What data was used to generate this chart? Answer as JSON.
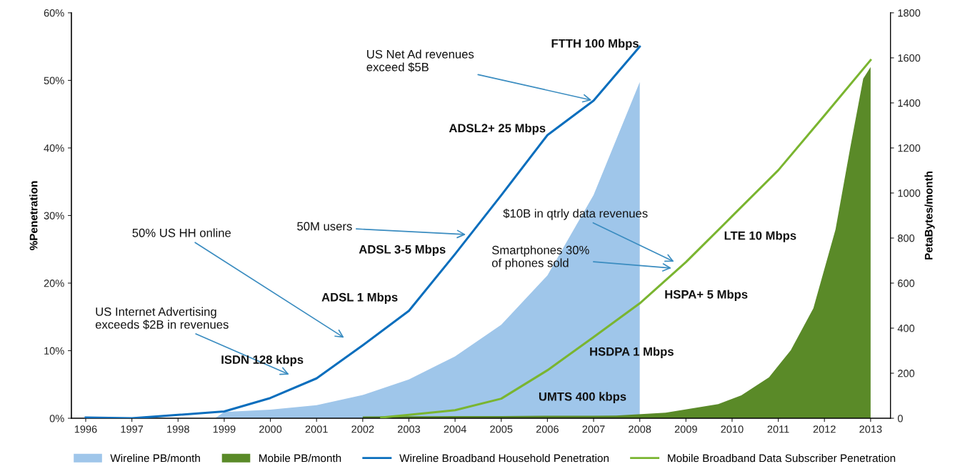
{
  "chart_data": {
    "type": "line",
    "ylabel": "%Penetration",
    "y2label": "PetaBytes/month",
    "xlim": [
      1995.69,
      2013.43
    ],
    "xticks": [
      1996,
      1997,
      1998,
      1999,
      2000,
      2001,
      2002,
      2003,
      2004,
      2005,
      2006,
      2007,
      2008,
      2009,
      2010,
      2011,
      2012,
      2013
    ],
    "ylim": [
      0,
      60
    ],
    "yticks": [
      {
        "value": 0,
        "label": "0%"
      },
      {
        "value": 10,
        "label": "10%"
      },
      {
        "value": 20,
        "label": "20%"
      },
      {
        "value": 30,
        "label": "30%"
      },
      {
        "value": 40,
        "label": "40%"
      },
      {
        "value": 50,
        "label": "50%"
      },
      {
        "value": 60,
        "label": "60%"
      }
    ],
    "y2lim": [
      0,
      1800
    ],
    "y2ticks": [
      0,
      200,
      400,
      600,
      800,
      1000,
      1200,
      1400,
      1600,
      1800
    ],
    "grid": false,
    "legend": "bottom",
    "series": [
      {
        "name": "Wireline PB/month",
        "type": "area",
        "axis": "y2",
        "color": "#9fc6ea",
        "x": [
          1998.8,
          1999,
          2000,
          2001,
          2002,
          2003,
          2004,
          2005,
          2006,
          2007,
          2008
        ],
        "values": [
          0,
          28,
          38,
          58,
          103,
          172,
          275,
          415,
          634,
          991,
          1493
        ]
      },
      {
        "name": "Mobile PB/month",
        "type": "area",
        "axis": "y2",
        "color": "#5a8a28",
        "x": [
          2002,
          2003,
          2004,
          2005,
          2006,
          2007,
          2007.49,
          2008.56,
          2009.7,
          2010.2,
          2010.8,
          2011.27,
          2011.76,
          2012.24,
          2012.56,
          2012.84,
          2013
        ],
        "values": [
          8,
          9,
          10,
          10,
          11,
          11,
          12,
          25,
          63,
          102,
          182,
          302,
          488,
          838,
          1202,
          1508,
          1559
        ]
      },
      {
        "name": "Wireline Broadband Household Penetration",
        "color": "#0a6ebd",
        "x": [
          1996,
          1997,
          1998,
          1999,
          2000,
          2001,
          2002,
          2003,
          2004,
          2005,
          2006,
          2007,
          2008
        ],
        "values": [
          0.1,
          0,
          0.5,
          1.0,
          3.0,
          5.9,
          10.8,
          15.9,
          24.3,
          33,
          41.9,
          47.0,
          55.0
        ]
      },
      {
        "name": "Mobile Broadband Data Subscriber Penetration",
        "color": "#7ab530",
        "x": [
          2002.4,
          2003,
          2004,
          2005,
          2006,
          2007,
          2008,
          2009,
          2010,
          2011,
          2012,
          2013
        ],
        "values": [
          0.1,
          0.5,
          1.2,
          2.9,
          7.1,
          12.0,
          17.0,
          23.1,
          29.9,
          36.7,
          44.8,
          53.0
        ]
      }
    ],
    "annotations": [
      "US Internet Advertising\nexceeds $2B in revenues",
      "50% US HH online",
      "50M users",
      {
        "text": "US Net Ad revenues\nexceed $5B",
        "x": 2007,
        "y": 47.0
      },
      "$10B in qtrly data revenues",
      "Smartphones 30%\nof phones sold",
      "FTTH 100 Mbps",
      "ADSL2+ 25 Mbps",
      "ADSL 3-5 Mbps",
      "ADSL 1 Mbps",
      "ISDN 128 kbps",
      "LTE 10 Mbps",
      "HSPA+ 5 Mbps",
      "HSDPA 1 Mbps",
      "UMTS 400 kbps"
    ]
  }
}
